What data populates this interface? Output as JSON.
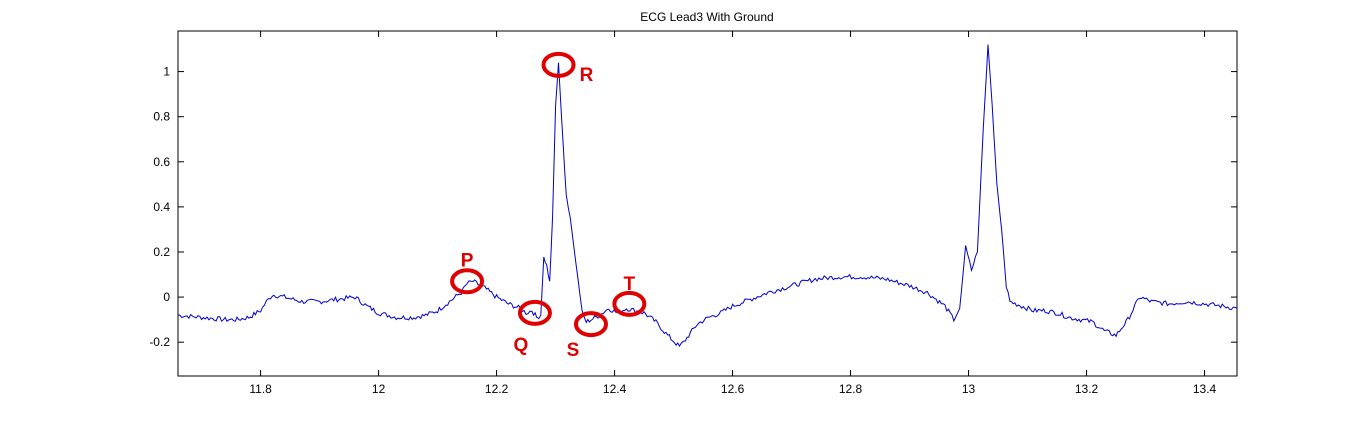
{
  "chart_data": {
    "type": "line",
    "title": "ECG Lead3 With Ground",
    "xlabel": "",
    "ylabel": "",
    "xlim": [
      11.66,
      13.455
    ],
    "ylim": [
      -0.35,
      1.18
    ],
    "grid": false,
    "legend": "none",
    "xticks": [
      11.8,
      12,
      12.2,
      12.4,
      12.6,
      12.8,
      13,
      13.2,
      13.4
    ],
    "xtick_labels": [
      "11.8",
      "12",
      "12.2",
      "12.4",
      "12.6",
      "12.8",
      "13",
      "13.2",
      "13.4"
    ],
    "yticks": [
      -0.2,
      0,
      0.2,
      0.4,
      0.6,
      0.8,
      1
    ],
    "ytick_labels": [
      "-0.2",
      "0",
      "0.2",
      "0.4",
      "0.6",
      "0.8",
      "1"
    ],
    "line_color": "#0000CC",
    "annotation_color": "#E00000",
    "series": [
      {
        "x": [
          11.66,
          11.7,
          11.74,
          11.76,
          11.78,
          11.8,
          11.81,
          11.82,
          11.84,
          11.87,
          11.9,
          11.93,
          11.96,
          11.98,
          12.0,
          12.03,
          12.06,
          12.08,
          12.1,
          12.12,
          12.14,
          12.15,
          12.16,
          12.18,
          12.2,
          12.22,
          12.24,
          12.25,
          12.26,
          12.268,
          12.275,
          12.28,
          12.285,
          12.29,
          12.295,
          12.3,
          12.305,
          12.31,
          12.318,
          12.325,
          12.332,
          12.338,
          12.345,
          12.352,
          12.36,
          12.375,
          12.39,
          12.405,
          12.42,
          12.435,
          12.45,
          12.47,
          12.49,
          12.51,
          12.52,
          12.54,
          12.56,
          12.58,
          12.6,
          12.63,
          12.66,
          12.7,
          12.74,
          12.78,
          12.82,
          12.86,
          12.9,
          12.93,
          12.96,
          12.975,
          12.985,
          12.995,
          13.005,
          13.015,
          13.025,
          13.033,
          13.04,
          13.048,
          13.056,
          13.064,
          13.07,
          13.09,
          13.11,
          13.13,
          13.15,
          13.17,
          13.19,
          13.21,
          13.23,
          13.25,
          13.27,
          13.29,
          13.31,
          13.34,
          13.37,
          13.4,
          13.43,
          13.455
        ],
        "y": [
          -0.08,
          -0.09,
          -0.1,
          -0.1,
          -0.09,
          -0.06,
          -0.02,
          0.01,
          0.0,
          -0.02,
          -0.02,
          -0.01,
          0.0,
          -0.04,
          -0.07,
          -0.09,
          -0.09,
          -0.08,
          -0.06,
          -0.02,
          0.02,
          0.06,
          0.07,
          0.04,
          0.0,
          -0.03,
          -0.05,
          -0.07,
          -0.06,
          -0.09,
          -0.08,
          0.18,
          0.14,
          0.07,
          0.36,
          0.85,
          1.04,
          0.8,
          0.45,
          0.35,
          0.2,
          0.08,
          -0.07,
          -0.11,
          -0.1,
          -0.08,
          -0.05,
          -0.07,
          -0.05,
          -0.06,
          -0.07,
          -0.11,
          -0.17,
          -0.22,
          -0.19,
          -0.12,
          -0.09,
          -0.07,
          -0.04,
          -0.01,
          0.02,
          0.05,
          0.08,
          0.09,
          0.09,
          0.08,
          0.05,
          0.02,
          -0.04,
          -0.1,
          -0.05,
          0.22,
          0.12,
          0.2,
          0.75,
          1.12,
          0.85,
          0.5,
          0.3,
          0.05,
          -0.02,
          -0.04,
          -0.06,
          -0.06,
          -0.07,
          -0.09,
          -0.1,
          -0.11,
          -0.15,
          -0.17,
          -0.1,
          0.0,
          -0.02,
          -0.03,
          -0.02,
          -0.03,
          -0.04,
          -0.05
        ]
      }
    ],
    "annotations": [
      {
        "label": "P",
        "x": 12.15,
        "y": 0.07
      },
      {
        "label": "Q",
        "x": 12.265,
        "y": -0.07
      },
      {
        "label": "R",
        "x": 12.305,
        "y": 1.03
      },
      {
        "label": "S",
        "x": 12.36,
        "y": -0.12
      },
      {
        "label": "T",
        "x": 12.425,
        "y": -0.03
      }
    ]
  }
}
